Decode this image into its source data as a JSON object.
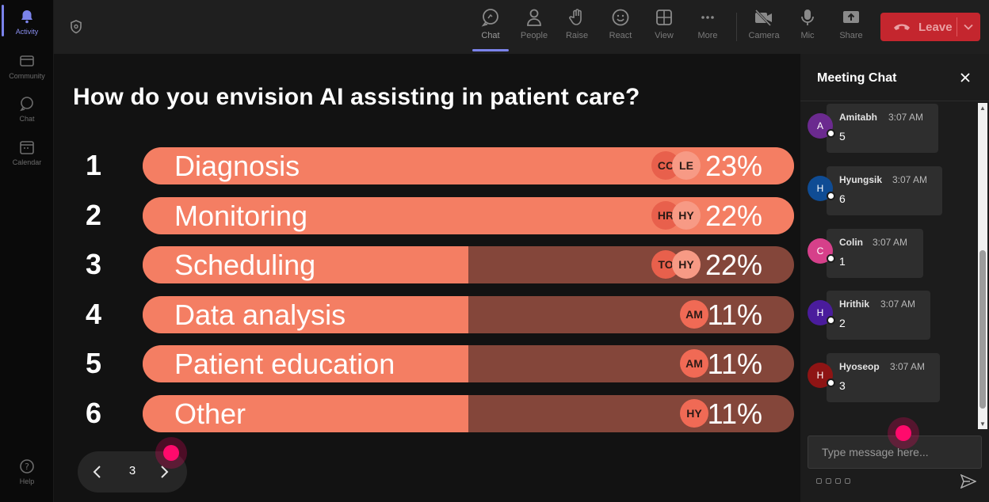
{
  "rail": {
    "items": [
      {
        "label": "Activity"
      },
      {
        "label": "Community"
      },
      {
        "label": "Chat"
      },
      {
        "label": "Calendar"
      },
      {
        "label": "Help"
      }
    ]
  },
  "toolbar": {
    "buttons": [
      {
        "label": "Chat",
        "icon": "chat-icon"
      },
      {
        "label": "People",
        "icon": "people-icon"
      },
      {
        "label": "Raise",
        "icon": "raise-hand-icon"
      },
      {
        "label": "React",
        "icon": "react-icon"
      },
      {
        "label": "View",
        "icon": "view-icon"
      },
      {
        "label": "More",
        "icon": "more-icon"
      },
      {
        "label": "Camera",
        "icon": "camera-off-icon"
      },
      {
        "label": "Mic",
        "icon": "mic-icon"
      },
      {
        "label": "Share",
        "icon": "share-icon"
      }
    ],
    "leave_label": "Leave",
    "leave_color": "#c4262e"
  },
  "poll": {
    "question": "How do you envision AI assisting in patient care?",
    "options": [
      {
        "num": "1",
        "label": "Diagnosis",
        "percent": "23%",
        "fill": 1.0,
        "avatars": [
          "CC",
          "LE"
        ]
      },
      {
        "num": "2",
        "label": "Monitoring",
        "percent": "22%",
        "fill": 1.0,
        "avatars": [
          "HR",
          "HY"
        ]
      },
      {
        "num": "3",
        "label": "Scheduling",
        "percent": "22%",
        "fill": 0.5,
        "avatars": [
          "TO",
          "HY"
        ]
      },
      {
        "num": "4",
        "label": "Data analysis",
        "percent": "11%",
        "fill": 0.5,
        "avatars": [
          "AM"
        ]
      },
      {
        "num": "5",
        "label": "Patient education",
        "percent": "11%",
        "fill": 0.5,
        "avatars": [
          "AM"
        ]
      },
      {
        "num": "6",
        "label": "Other",
        "percent": "11%",
        "fill": 0.5,
        "avatars": [
          "HY"
        ]
      }
    ],
    "bar_color": "#f47e63",
    "track_color": "#84463a",
    "page": "3"
  },
  "chat": {
    "title": "Meeting Chat",
    "input_placeholder": "Type message here...",
    "messages": [
      {
        "initial": "A",
        "name": "Amitabh",
        "time": "3:07 AM",
        "text": "5",
        "color": "#6b2a8f"
      },
      {
        "initial": "H",
        "name": "Hyungsik",
        "time": "3:07 AM",
        "text": "6",
        "color": "#0f4c94"
      },
      {
        "initial": "C",
        "name": "Colin",
        "time": "3:07 AM",
        "text": "1",
        "color": "#d6408a"
      },
      {
        "initial": "H",
        "name": "Hrithik",
        "time": "3:07 AM",
        "text": "2",
        "color": "#4a1c9c"
      },
      {
        "initial": "H",
        "name": "Hyoseop",
        "time": "3:07 AM",
        "text": "3",
        "color": "#8e1414"
      }
    ]
  }
}
